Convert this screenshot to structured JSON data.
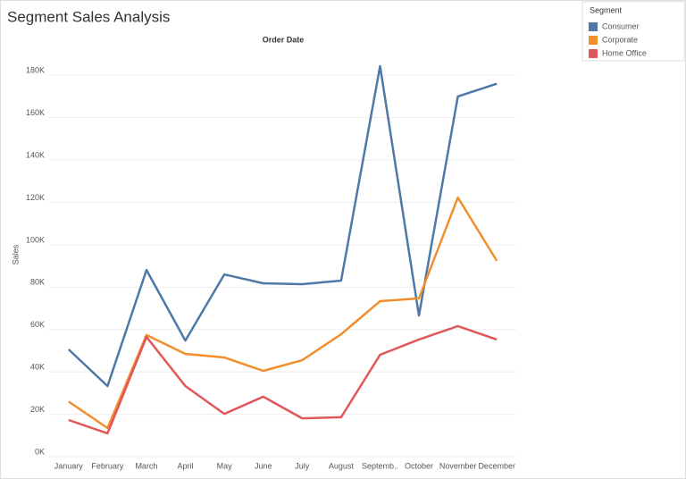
{
  "chart_data": {
    "type": "line",
    "title": "Segment Sales Analysis",
    "x_header": "Order Date",
    "y_label": "Sales",
    "categories": [
      "January",
      "February",
      "March",
      "April",
      "May",
      "June",
      "July",
      "August",
      "Septemb..",
      "October",
      "November",
      "December"
    ],
    "series": [
      {
        "name": "Consumer",
        "color": "#4e79a7",
        "values": [
          50600,
          33300,
          88100,
          54800,
          86000,
          81800,
          81400,
          83100,
          184300,
          66600,
          170000,
          176000
        ]
      },
      {
        "name": "Corporate",
        "color": "#f28e2b",
        "values": [
          26000,
          13500,
          57400,
          48500,
          46800,
          40500,
          45500,
          57800,
          73400,
          74700,
          122300,
          92400
        ]
      },
      {
        "name": "Home Office",
        "color": "#e15759",
        "values": [
          17300,
          11000,
          56500,
          33300,
          20200,
          28300,
          18100,
          18600,
          48100,
          55300,
          61600,
          55300
        ]
      }
    ],
    "ylim": [
      0,
      190000
    ],
    "yticks": [
      {
        "value": 0,
        "label": "0K"
      },
      {
        "value": 20000,
        "label": "20K"
      },
      {
        "value": 40000,
        "label": "40K"
      },
      {
        "value": 60000,
        "label": "60K"
      },
      {
        "value": 80000,
        "label": "80K"
      },
      {
        "value": 100000,
        "label": "100K"
      },
      {
        "value": 120000,
        "label": "120K"
      },
      {
        "value": 140000,
        "label": "140K"
      },
      {
        "value": 160000,
        "label": "160K"
      },
      {
        "value": 180000,
        "label": "180K"
      }
    ],
    "grid": true,
    "legend_title": "Segment",
    "legend_position": "right"
  }
}
